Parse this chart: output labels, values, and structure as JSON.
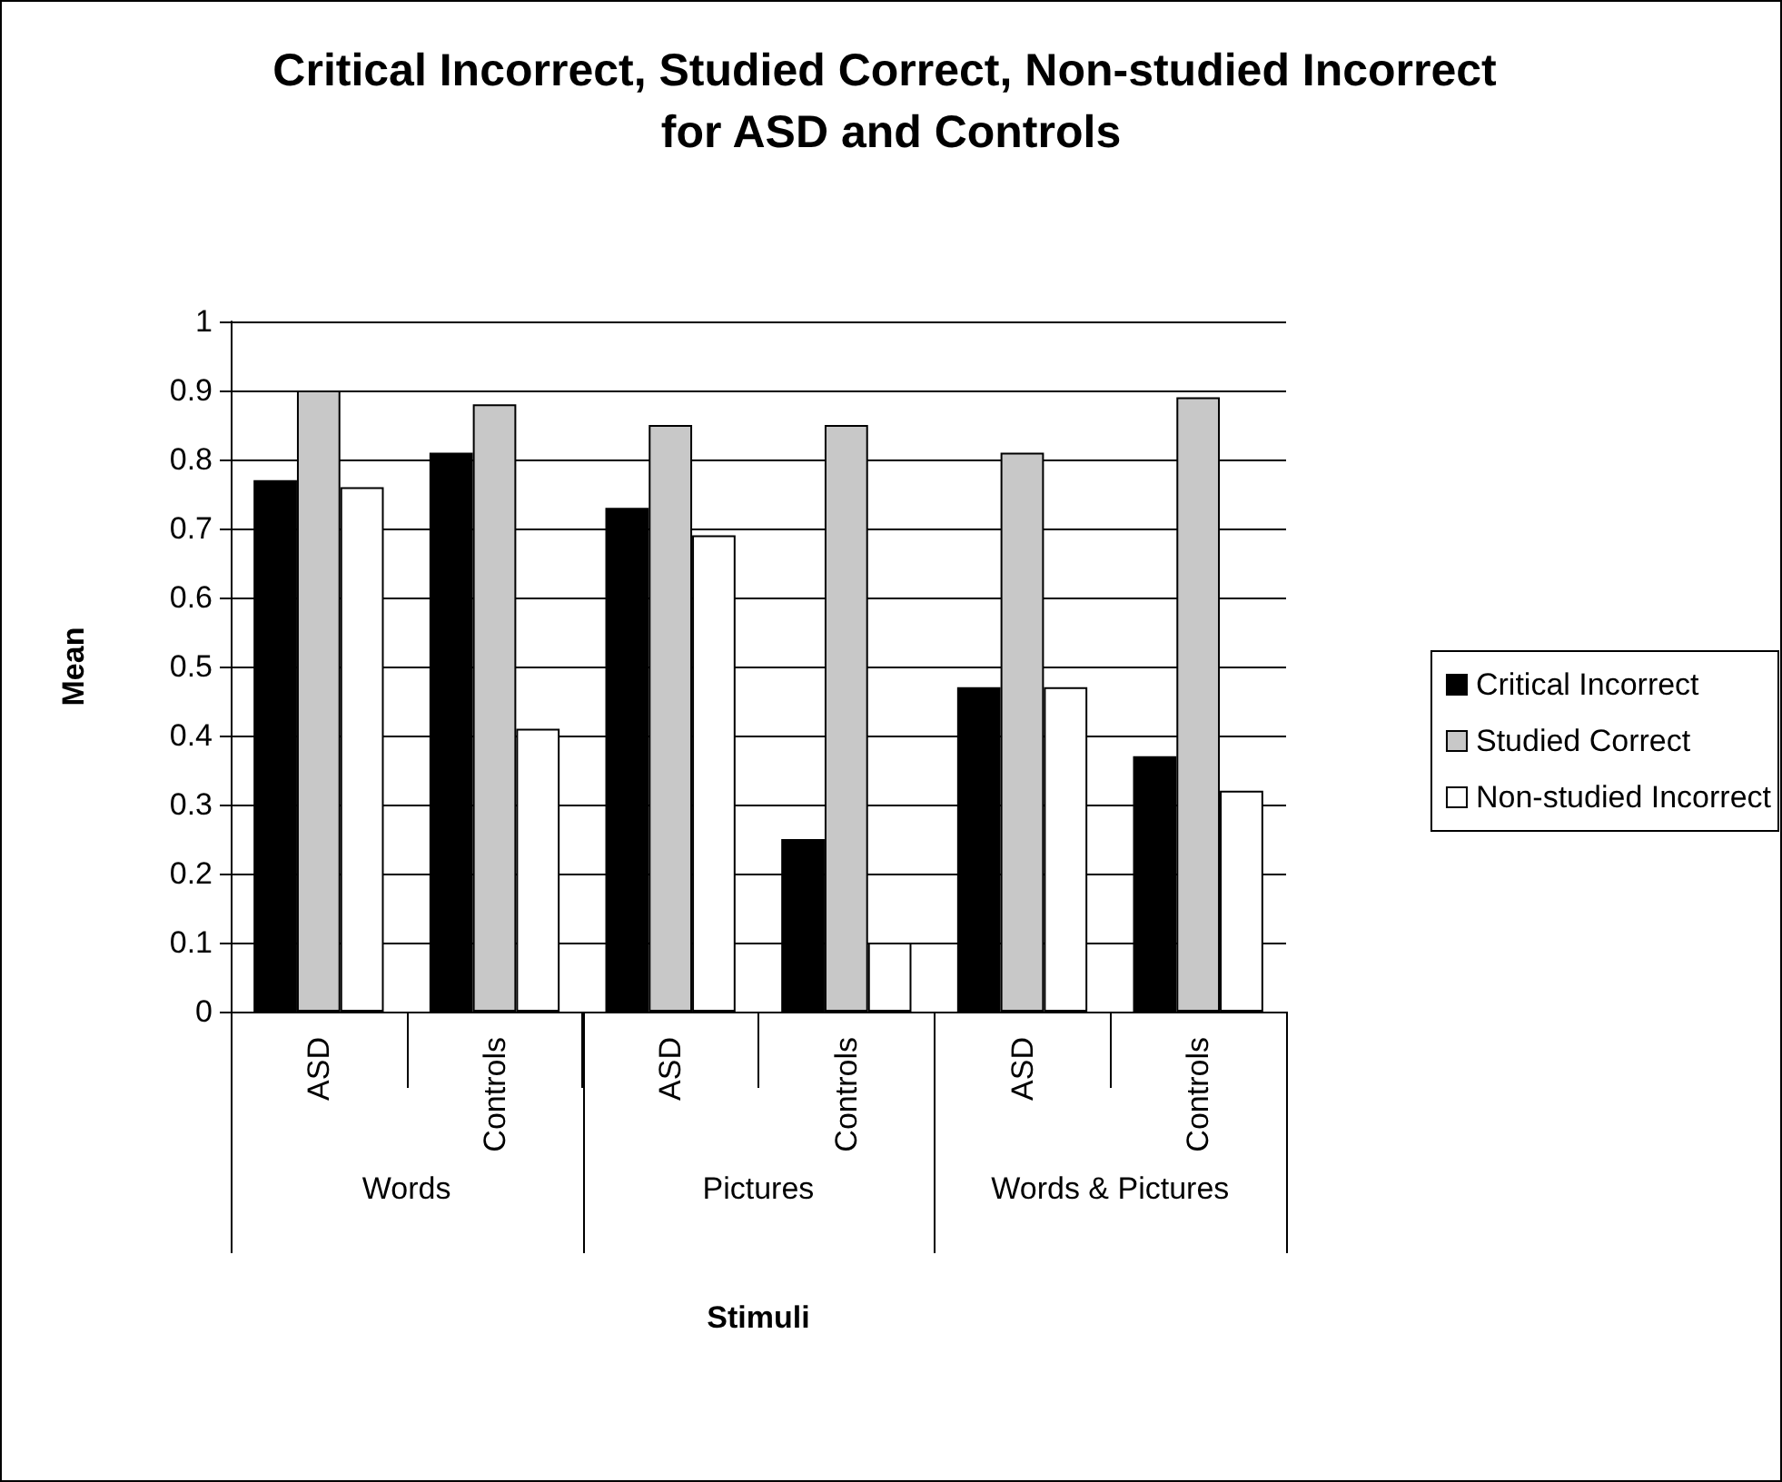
{
  "chart_data": {
    "type": "bar",
    "title": "Critical Incorrect, Studied Correct, Non-studied Incorrect for ASD and Controls",
    "xlabel": "Stimuli",
    "ylabel": "Mean",
    "categories": [
      "ASD",
      "Controls",
      "ASD",
      "Controls",
      "ASD",
      "Controls"
    ],
    "annotations": [
      "Words",
      "Pictures",
      "Words & Pictures"
    ],
    "series": [
      {
        "name": "Critical Incorrect",
        "color": "#000000",
        "values": [
          0.77,
          0.81,
          0.73,
          0.25,
          0.47,
          0.37
        ]
      },
      {
        "name": "Studied Correct",
        "color": "#c8c8c8",
        "values": [
          0.9,
          0.88,
          0.85,
          0.85,
          0.81,
          0.89
        ]
      },
      {
        "name": "Non-studied Incorrect",
        "color": "#ffffff",
        "values": [
          0.76,
          0.41,
          0.69,
          0.1,
          0.47,
          0.32
        ]
      }
    ],
    "ylim": [
      0,
      1
    ],
    "yticks": [
      0,
      0.1,
      0.2,
      0.3,
      0.4,
      0.5,
      0.6,
      0.7,
      0.8,
      0.9,
      1
    ],
    "grid": "y",
    "legend": "right"
  }
}
